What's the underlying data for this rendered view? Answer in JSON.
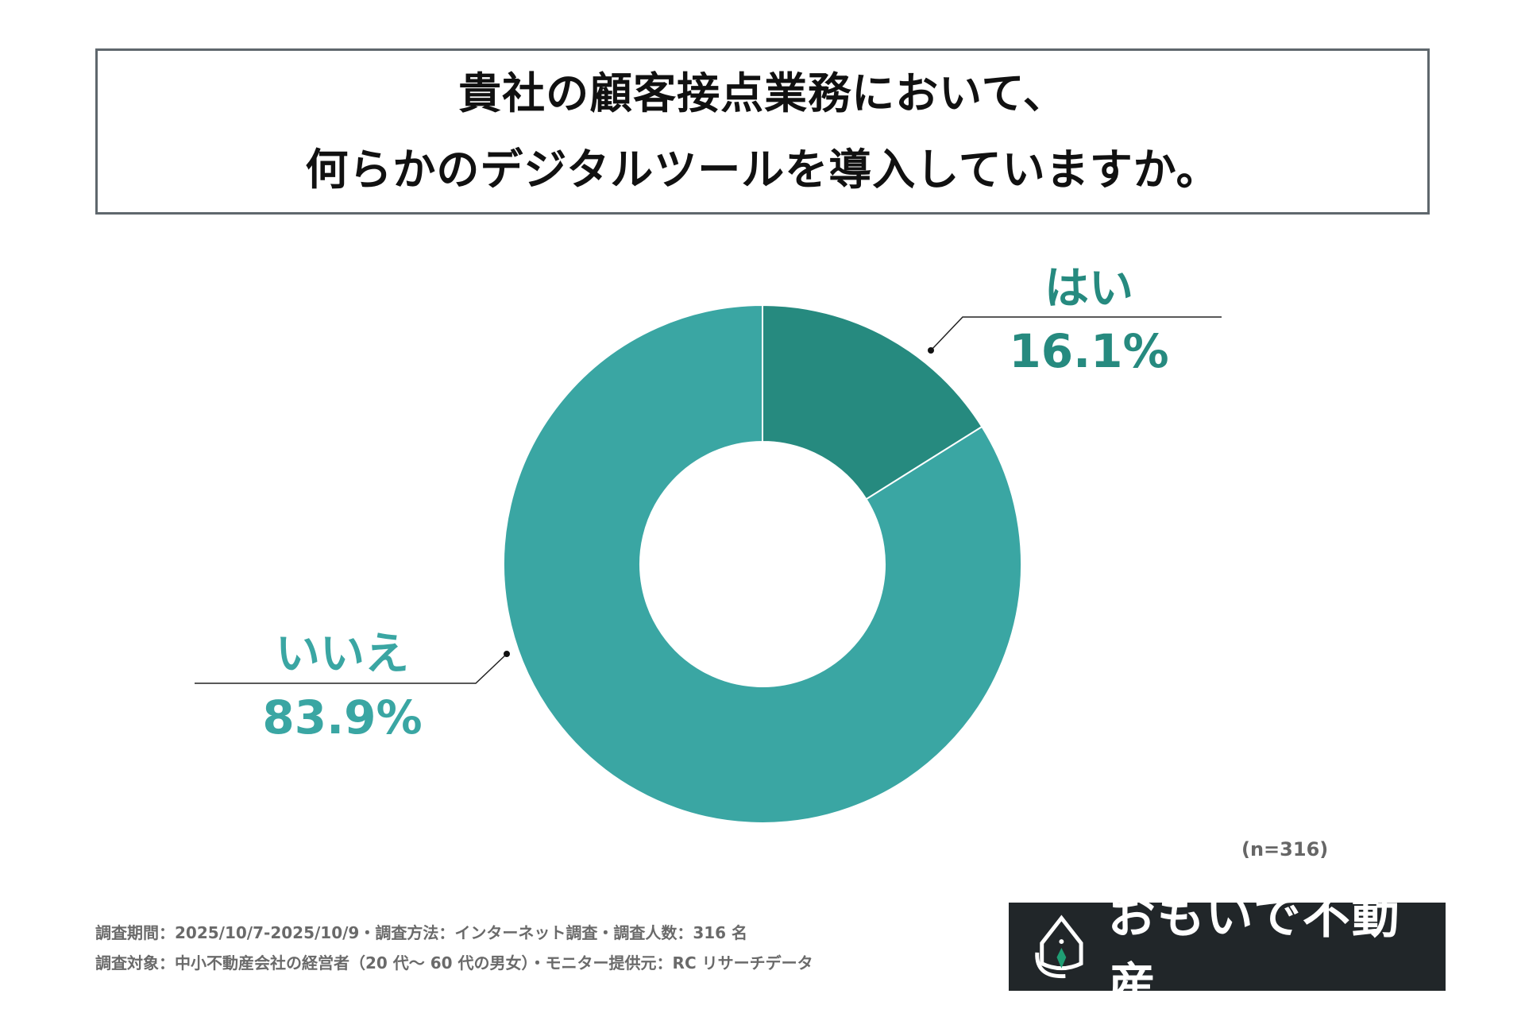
{
  "title": {
    "line1": "貴社の顧客接点業務において、",
    "line2": "何らかのデジタルツールを導入していますか。"
  },
  "chart_data": {
    "type": "pie",
    "subtype": "donut",
    "title": "貴社の顧客接点業務において、何らかのデジタルツールを導入していますか。",
    "categories": [
      "はい",
      "いいえ"
    ],
    "values": [
      16.1,
      83.9
    ],
    "labels": [
      "16.1%",
      "83.9%"
    ],
    "colors": [
      "#268a7f",
      "#3aa6a3"
    ],
    "start_angle": "12 o'clock, clockwise",
    "sample_size": "(n=316)"
  },
  "footer": {
    "line1": "調査期間：2025/10/7-2025/10/9・調査方法：インターネット調査・調査人数：316 名",
    "line2": "調査対象：中小不動産会社の経営者（20 代～ 60 代の男女）・モニター提供元：RC リサーチデータ"
  },
  "logo": {
    "text": "おもいで不動産",
    "icon": "house-drop-logo-icon",
    "background": "#212629",
    "accent": "#1f9e74"
  }
}
